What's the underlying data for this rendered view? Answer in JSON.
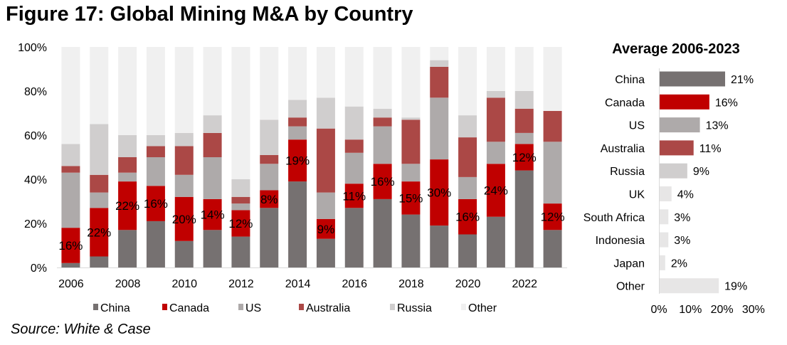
{
  "title": "Figure 17: Global Mining M&A by Country",
  "source": "Source: White & Case",
  "colors": {
    "China": "#767171",
    "Canada": "#c00000",
    "US": "#aeaaaa",
    "Australia": "#ab4846",
    "Russia": "#d0cece",
    "Other": "#f0f0f0"
  },
  "chart_data": [
    {
      "type": "bar",
      "stacked": true,
      "title": "Global Mining M&A by Country",
      "categories": [
        "2006",
        "2007",
        "2008",
        "2009",
        "2010",
        "2011",
        "2012",
        "2013",
        "2014",
        "2015",
        "2016",
        "2017",
        "2018",
        "2019",
        "2020",
        "2021",
        "2022",
        "2023"
      ],
      "x_tick_labels": [
        "2006",
        "2008",
        "2010",
        "2012",
        "2014",
        "2016",
        "2018",
        "2020",
        "2022"
      ],
      "y_ticks": [
        "0%",
        "20%",
        "40%",
        "60%",
        "80%",
        "100%"
      ],
      "ylim": [
        0,
        100
      ],
      "xlabel": "",
      "ylabel": "",
      "legend_position": "bottom",
      "series": [
        {
          "name": "China",
          "values": [
            2,
            5,
            17,
            21,
            12,
            17,
            14,
            27,
            39,
            13,
            27,
            31,
            24,
            19,
            15,
            23,
            44,
            17
          ]
        },
        {
          "name": "Canada",
          "values": [
            16,
            22,
            22,
            16,
            20,
            14,
            12,
            8,
            19,
            9,
            11,
            16,
            15,
            30,
            16,
            24,
            12,
            12
          ]
        },
        {
          "name": "US",
          "values": [
            25,
            7,
            4,
            13,
            10,
            19,
            3,
            12,
            6,
            12,
            14,
            17,
            8,
            28,
            10,
            10,
            5,
            28
          ]
        },
        {
          "name": "Australia",
          "values": [
            3,
            8,
            7,
            5,
            13,
            11,
            3,
            4,
            4,
            29,
            6,
            4,
            20,
            14,
            18,
            20,
            11,
            14
          ]
        },
        {
          "name": "Russia",
          "values": [
            10,
            23,
            10,
            5,
            6,
            8,
            8,
            16,
            8,
            14,
            15,
            4,
            1,
            3,
            10,
            3,
            8,
            0
          ]
        },
        {
          "name": "Other",
          "values": [
            44,
            35,
            40,
            40,
            39,
            31,
            60,
            33,
            24,
            23,
            27,
            28,
            32,
            6,
            31,
            20,
            20,
            29
          ]
        }
      ],
      "data_labels": {
        "series": "Canada",
        "values": [
          "16%",
          "22%",
          "22%",
          "16%",
          "20%",
          "14%",
          "12%",
          "8%",
          "19%",
          "9%",
          "11%",
          "16%",
          "15%",
          "30%",
          "16%",
          "24%",
          "12%",
          "12%"
        ]
      }
    },
    {
      "type": "bar",
      "orientation": "horizontal",
      "title": "Average 2006-2023",
      "categories": [
        "China",
        "Canada",
        "US",
        "Australia",
        "Russia",
        "UK",
        "South Africa",
        "Indonesia",
        "Japan",
        "Other"
      ],
      "values": [
        21,
        16,
        13,
        11,
        9,
        4,
        3,
        3,
        2,
        19
      ],
      "value_labels": [
        "21%",
        "16%",
        "13%",
        "11%",
        "9%",
        "4%",
        "3%",
        "3%",
        "2%",
        "19%"
      ],
      "bar_colors": [
        "#767171",
        "#c00000",
        "#aeaaaa",
        "#ab4846",
        "#d0cece",
        "#e7e6e6",
        "#e7e6e6",
        "#e7e6e6",
        "#e7e6e6",
        "#e7e6e6"
      ],
      "x_ticks": [
        "0%",
        "10%",
        "20%",
        "30%"
      ],
      "xlim": [
        0,
        30
      ]
    }
  ]
}
